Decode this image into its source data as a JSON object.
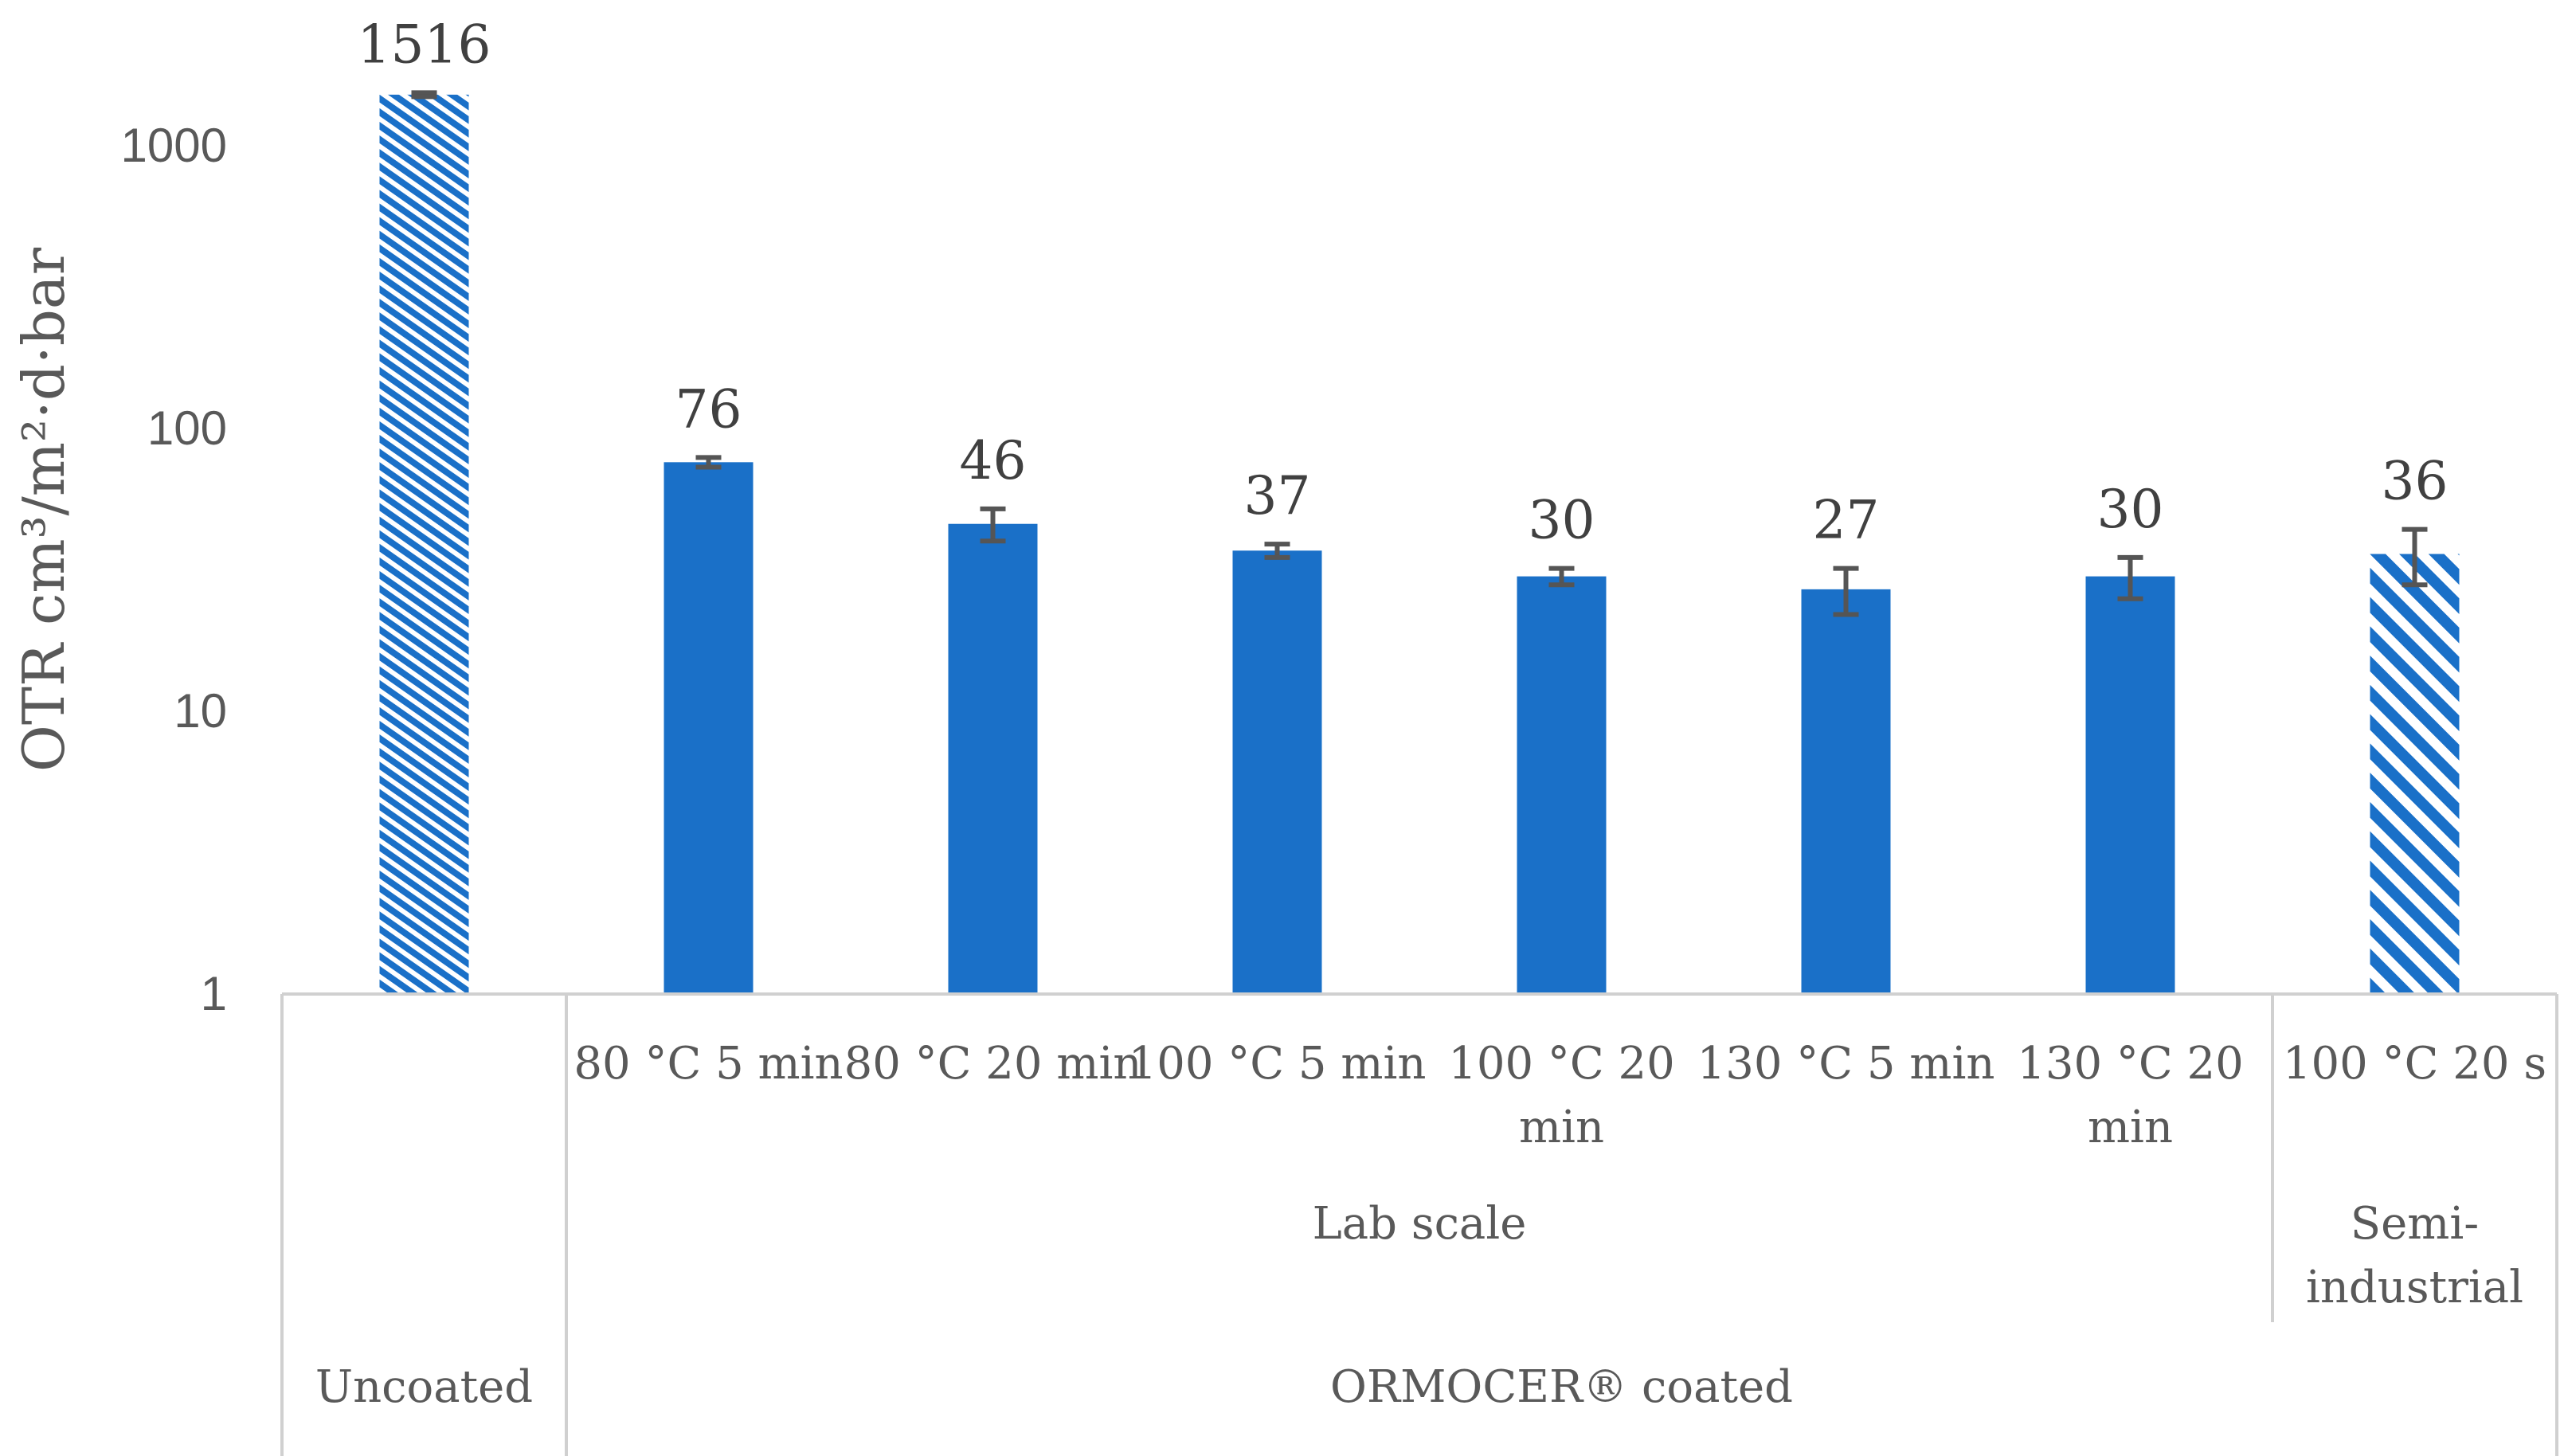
{
  "chart_data": {
    "type": "bar",
    "ylabel": "OTR cm³/m²·d·bar",
    "yscale": "log",
    "ylim": [
      1,
      2000
    ],
    "yticks": [
      "1",
      "10",
      "100",
      "1000"
    ],
    "bars": [
      {
        "label": "",
        "value": 1516,
        "value_label": "1516",
        "error": 25,
        "pattern": "dense-hatch"
      },
      {
        "label": "80 °C 5 min",
        "value": 76,
        "value_label": "76",
        "error": 3,
        "pattern": "solid"
      },
      {
        "label": "80 °C 20 min",
        "value": 46,
        "value_label": "46",
        "error": 6,
        "pattern": "solid"
      },
      {
        "label": "100 °C 5 min",
        "value": 37,
        "value_label": "37",
        "error": 2,
        "pattern": "solid"
      },
      {
        "label": "100 °C 20 min",
        "value": 30,
        "value_label": "30",
        "error": 2,
        "pattern": "solid"
      },
      {
        "label": "130 °C 5 min",
        "value": 27,
        "value_label": "27",
        "error": 5,
        "pattern": "solid"
      },
      {
        "label": "130 °C 20 min",
        "value": 30,
        "value_label": "30",
        "error": 5,
        "pattern": "solid"
      },
      {
        "label": "100 °C 20 s",
        "value": 36,
        "value_label": "36",
        "error": 8,
        "pattern": "wide-hatch"
      }
    ],
    "groups_level2": [
      {
        "label": "Lab scale",
        "start": 1,
        "end": 6
      },
      {
        "label": "Semi-industrial",
        "start": 7,
        "end": 7
      }
    ],
    "groups_level3": [
      {
        "label": "Uncoated",
        "start": 0,
        "end": 0
      },
      {
        "label": "ORMOCER® coated",
        "start": 1,
        "end": 7
      }
    ],
    "colors": {
      "bar": "#1a70c8",
      "error": "#555555",
      "axis": "#d0d0d0",
      "text": "#595959"
    }
  }
}
